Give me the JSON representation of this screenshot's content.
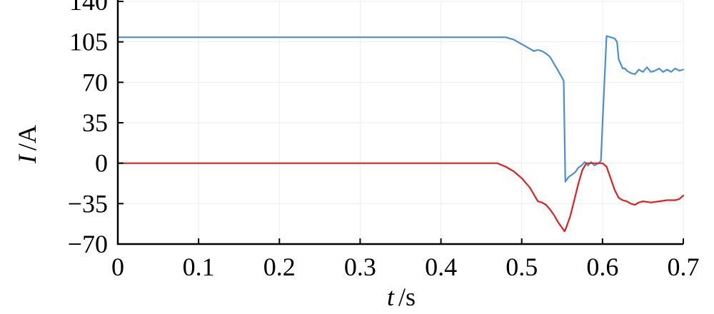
{
  "chart_data": {
    "type": "line",
    "xlabel": {
      "var": "t",
      "unit": "/s"
    },
    "ylabel": {
      "var": "I",
      "unit": "/A"
    },
    "xlim": [
      0,
      0.7
    ],
    "ylim": [
      -70,
      140
    ],
    "xticks": [
      0,
      0.1,
      0.2,
      0.3,
      0.4,
      0.5,
      0.6,
      0.7
    ],
    "yticks": [
      -70,
      -35,
      0,
      35,
      70,
      105,
      140
    ],
    "xtick_labels": [
      "0",
      "0.1",
      "0.2",
      "0.3",
      "0.4",
      "0.5",
      "0.6",
      "0.7"
    ],
    "ytick_labels": [
      "−70",
      "−35",
      "0",
      "35",
      "70",
      "105",
      "140"
    ],
    "grid": true,
    "series": [
      {
        "color": "#4a8fd6",
        "x": [
          0,
          0.48,
          0.49,
          0.505,
          0.515,
          0.52,
          0.525,
          0.53,
          0.535,
          0.54,
          0.545,
          0.55,
          0.552,
          0.554,
          0.558,
          0.562,
          0.566,
          0.57,
          0.574,
          0.578,
          0.582,
          0.586,
          0.59,
          0.595,
          0.598,
          0.601,
          0.605,
          0.61,
          0.615,
          0.618,
          0.62,
          0.625,
          0.628,
          0.63,
          0.635,
          0.64,
          0.645,
          0.65,
          0.655,
          0.66,
          0.665,
          0.67,
          0.675,
          0.68,
          0.685,
          0.69,
          0.695,
          0.7
        ],
        "y": [
          109,
          109,
          107,
          101,
          97,
          98,
          97,
          95,
          92,
          86,
          80,
          74,
          71,
          -16,
          -12,
          -10,
          -8,
          -4,
          -2,
          1,
          -2,
          1,
          -2,
          0,
          2,
          50,
          110,
          109,
          108,
          105,
          90,
          82,
          82,
          80,
          78,
          77,
          81,
          79,
          83,
          79,
          80,
          82,
          79,
          81,
          79,
          82,
          80,
          81
        ]
      },
      {
        "color": "#e02020",
        "x": [
          0,
          0.47,
          0.48,
          0.49,
          0.5,
          0.51,
          0.52,
          0.525,
          0.53,
          0.535,
          0.54,
          0.545,
          0.55,
          0.553,
          0.555,
          0.56,
          0.565,
          0.57,
          0.575,
          0.58,
          0.59,
          0.6,
          0.605,
          0.61,
          0.615,
          0.62,
          0.625,
          0.63,
          0.635,
          0.64,
          0.645,
          0.65,
          0.66,
          0.67,
          0.68,
          0.69,
          0.695,
          0.7
        ],
        "y": [
          0,
          0,
          -3,
          -7,
          -13,
          -21,
          -33,
          -34,
          -36,
          -40,
          -45,
          -51,
          -56,
          -59,
          -56,
          -46,
          -32,
          -18,
          -6,
          0,
          0,
          0,
          -3,
          -13,
          -23,
          -30,
          -32,
          -33,
          -35,
          -36,
          -34,
          -33,
          -34,
          -33,
          -32,
          -32,
          -31,
          -28
        ]
      }
    ]
  }
}
